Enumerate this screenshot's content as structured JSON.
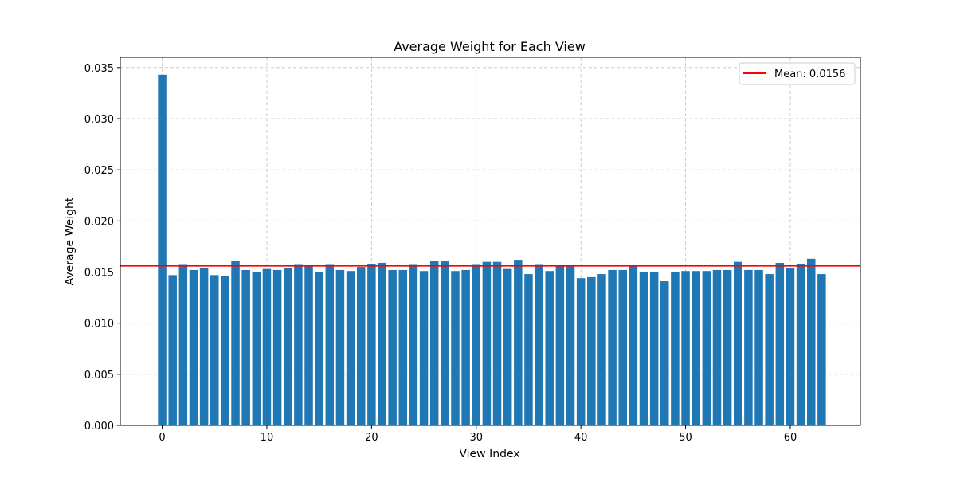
{
  "chart_data": {
    "type": "bar",
    "title": "Average Weight for Each View",
    "xlabel": "View Index",
    "ylabel": "Average Weight",
    "x": [
      0,
      1,
      2,
      3,
      4,
      5,
      6,
      7,
      8,
      9,
      10,
      11,
      12,
      13,
      14,
      15,
      16,
      17,
      18,
      19,
      20,
      21,
      22,
      23,
      24,
      25,
      26,
      27,
      28,
      29,
      30,
      31,
      32,
      33,
      34,
      35,
      36,
      37,
      38,
      39,
      40,
      41,
      42,
      43,
      44,
      45,
      46,
      47,
      48,
      49,
      50,
      51,
      52,
      53,
      54,
      55,
      56,
      57,
      58,
      59,
      60,
      61,
      62,
      63
    ],
    "values": [
      0.0343,
      0.0147,
      0.0157,
      0.0152,
      0.0154,
      0.0147,
      0.0146,
      0.0161,
      0.0152,
      0.015,
      0.0153,
      0.0152,
      0.0154,
      0.0157,
      0.0156,
      0.015,
      0.0157,
      0.0152,
      0.0151,
      0.0155,
      0.0158,
      0.0159,
      0.0152,
      0.0152,
      0.0157,
      0.0151,
      0.0161,
      0.0161,
      0.0151,
      0.0152,
      0.0157,
      0.016,
      0.016,
      0.0153,
      0.0162,
      0.0148,
      0.0157,
      0.0151,
      0.0156,
      0.0156,
      0.0144,
      0.0145,
      0.0148,
      0.0152,
      0.0152,
      0.0156,
      0.015,
      0.015,
      0.0141,
      0.015,
      0.0151,
      0.0151,
      0.0151,
      0.0152,
      0.0152,
      0.016,
      0.0152,
      0.0152,
      0.0148,
      0.0159,
      0.0154,
      0.0158,
      0.0163,
      0.0148
    ],
    "bar_color": "#1f77b4",
    "mean_line": {
      "value": 0.0156,
      "label": "Mean: 0.0156",
      "color": "#ff0000"
    },
    "xlim": [
      -4,
      66.7
    ],
    "ylim": [
      0,
      0.036
    ],
    "xticks": [
      0,
      10,
      20,
      30,
      40,
      50,
      60
    ],
    "xtick_labels": [
      "0",
      "10",
      "20",
      "30",
      "40",
      "50",
      "60"
    ],
    "yticks": [
      0,
      0.005,
      0.01,
      0.015,
      0.02,
      0.025,
      0.03,
      0.035
    ],
    "ytick_labels": [
      "0.000",
      "0.005",
      "0.010",
      "0.015",
      "0.020",
      "0.025",
      "0.030",
      "0.035"
    ],
    "grid": true,
    "legend_position": "top-right"
  }
}
